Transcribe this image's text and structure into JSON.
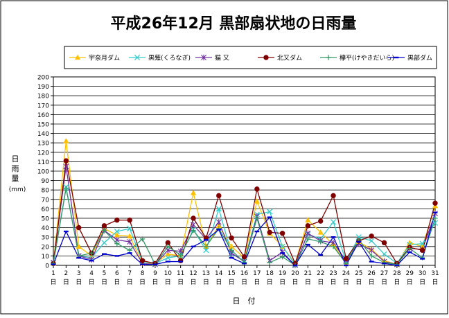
{
  "chart_data": {
    "type": "line",
    "title": "平成26年12月 黒部扇状地の日雨量",
    "ylabel_chars": [
      "日",
      "雨",
      "量"
    ],
    "yunit": "(mm)",
    "xlabel": "日　付",
    "ylim": [
      0,
      200
    ],
    "ytick_step": 10,
    "grid": true,
    "legend_position": "top",
    "x": [
      "1",
      "2",
      "3",
      "4",
      "5",
      "6",
      "7",
      "8",
      "9",
      "10",
      "11",
      "12",
      "13",
      "14",
      "15",
      "16",
      "17",
      "18",
      "19",
      "20",
      "21",
      "22",
      "23",
      "24",
      "25",
      "26",
      "27",
      "28",
      "29",
      "30",
      "31"
    ],
    "x_suffix": "日",
    "series": [
      {
        "name": "宇奈月ダム",
        "color": "#FFC000",
        "marker": "triangle",
        "values": [
          2,
          132,
          20,
          10,
          39,
          32,
          31,
          2,
          2,
          12,
          10,
          77,
          20,
          42,
          20,
          8,
          68,
          34,
          20,
          2,
          48,
          35,
          22,
          2,
          25,
          17,
          5,
          1,
          24,
          20,
          63
        ]
      },
      {
        "name": "黒薙(くろなぎ)",
        "color": "#33CCCC",
        "marker": "x",
        "values": [
          3,
          83,
          10,
          8,
          24,
          36,
          39,
          4,
          2,
          8,
          10,
          38,
          16,
          60,
          12,
          5,
          54,
          57,
          20,
          1,
          33,
          28,
          46,
          4,
          30,
          26,
          12,
          2,
          22,
          23,
          45
        ]
      },
      {
        "name": "猫 又",
        "color": "#7030A0",
        "marker": "star",
        "values": [
          3,
          105,
          10,
          6,
          37,
          27,
          25,
          2,
          1,
          16,
          15,
          43,
          28,
          46,
          13,
          4,
          52,
          5,
          14,
          0,
          34,
          26,
          24,
          5,
          23,
          16,
          4,
          1,
          18,
          17,
          55
        ]
      },
      {
        "name": "北又ダム",
        "color": "#800000",
        "marker": "circle",
        "values": [
          2,
          111,
          40,
          13,
          42,
          48,
          48,
          5,
          2,
          24,
          5,
          50,
          29,
          74,
          29,
          9,
          81,
          35,
          34,
          2,
          42,
          47,
          74,
          7,
          26,
          31,
          24,
          2,
          19,
          16,
          66
        ]
      },
      {
        "name": "欅平(けやきだいら)",
        "color": "#339966",
        "marker": "plus",
        "values": [
          2,
          82,
          10,
          13,
          37,
          23,
          16,
          28,
          1,
          20,
          11,
          37,
          20,
          39,
          16,
          3,
          50,
          3,
          9,
          0,
          28,
          25,
          20,
          2,
          27,
          10,
          3,
          1,
          18,
          8,
          50
        ]
      },
      {
        "name": "黒部ダム",
        "color": "#0000CC",
        "marker": "dash",
        "values": [
          1,
          36,
          8,
          5,
          12,
          10,
          13,
          1,
          1,
          4,
          4,
          20,
          27,
          38,
          8,
          2,
          36,
          51,
          13,
          0,
          22,
          11,
          30,
          0,
          25,
          4,
          2,
          0,
          14,
          7,
          56
        ]
      }
    ]
  }
}
